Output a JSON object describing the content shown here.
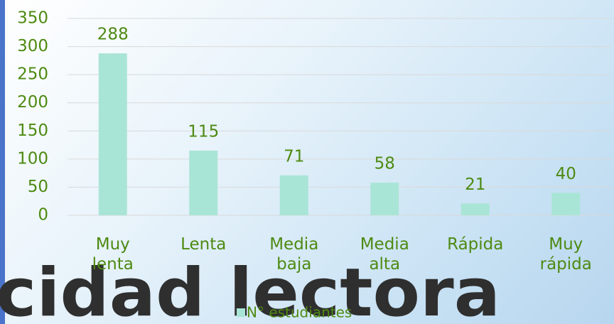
{
  "chart_data": {
    "type": "bar",
    "categories": [
      "Muy lenta",
      "Lenta",
      "Media baja",
      "Media alta",
      "Rápida",
      "Muy rápida"
    ],
    "series": [
      {
        "name": "N° estudiantes",
        "color": "#a9e5d6",
        "values": [
          288,
          115,
          71,
          58,
          21,
          40
        ]
      }
    ],
    "ylim": [
      0,
      350
    ],
    "yticks": [
      0,
      50,
      100,
      150,
      200,
      250,
      300,
      350
    ],
    "grid": true,
    "legend": "bottom"
  },
  "background_text": "cidad lectora"
}
